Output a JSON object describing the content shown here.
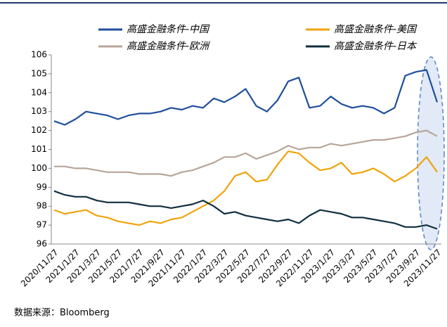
{
  "chart_data": {
    "type": "line",
    "categories": [
      "2020/11/27",
      null,
      "2021/1/27",
      null,
      "2021/3/27",
      null,
      "2021/5/27",
      null,
      "2021/7/27",
      null,
      "2021/9/27",
      null,
      "2021/11/27",
      null,
      "2022/1/27",
      null,
      "2022/3/27",
      null,
      "2022/5/27",
      null,
      "2022/7/27",
      null,
      "2022/9/27",
      null,
      "2022/11/27",
      null,
      "2023/1/27",
      null,
      "2023/3/27",
      null,
      "2023/5/27",
      null,
      "2023/7/27",
      null,
      "2023/9/27",
      null,
      "2023/11/27"
    ],
    "series": [
      {
        "name": "高盛金融条件-中国",
        "color": "#1f4e9c",
        "values": [
          102.5,
          102.3,
          102.6,
          103.0,
          102.9,
          102.8,
          102.6,
          102.8,
          102.9,
          102.9,
          103.0,
          103.2,
          103.1,
          103.3,
          103.2,
          103.7,
          103.5,
          103.8,
          104.2,
          103.3,
          103.0,
          103.6,
          104.6,
          104.8,
          103.2,
          103.3,
          103.8,
          103.4,
          103.2,
          103.3,
          103.2,
          102.9,
          103.2,
          104.9,
          105.1,
          105.2,
          103.5
        ]
      },
      {
        "name": "高盛金融条件-美国",
        "color": "#f0a30a",
        "values": [
          97.8,
          97.6,
          97.7,
          97.8,
          97.5,
          97.4,
          97.2,
          97.1,
          97.0,
          97.2,
          97.1,
          97.3,
          97.4,
          97.7,
          98.0,
          98.3,
          98.8,
          99.6,
          99.8,
          99.3,
          99.4,
          100.2,
          100.9,
          100.8,
          100.3,
          99.9,
          100.0,
          100.3,
          99.7,
          99.8,
          100.0,
          99.7,
          99.3,
          99.6,
          100.0,
          100.6,
          99.8
        ]
      },
      {
        "name": "高盛金融条件-欧洲",
        "color": "#b8a59a",
        "values": [
          100.1,
          100.1,
          100.0,
          100.0,
          99.9,
          99.8,
          99.8,
          99.8,
          99.7,
          99.7,
          99.7,
          99.6,
          99.8,
          99.9,
          100.1,
          100.3,
          100.6,
          100.6,
          100.8,
          100.5,
          100.7,
          100.9,
          101.2,
          101.0,
          101.1,
          101.1,
          101.3,
          101.2,
          101.3,
          101.4,
          101.5,
          101.5,
          101.6,
          101.7,
          101.9,
          102.0,
          101.7
        ]
      },
      {
        "name": "高盛金融条件-日本",
        "color": "#0f2e3f",
        "values": [
          98.8,
          98.6,
          98.5,
          98.5,
          98.3,
          98.2,
          98.2,
          98.2,
          98.1,
          98.0,
          98.0,
          97.9,
          98.0,
          98.1,
          98.3,
          98.0,
          97.6,
          97.7,
          97.5,
          97.4,
          97.3,
          97.2,
          97.3,
          97.1,
          97.5,
          97.8,
          97.7,
          97.6,
          97.4,
          97.4,
          97.3,
          97.2,
          97.1,
          96.9,
          96.9,
          97.0,
          96.8
        ]
      }
    ],
    "ylim": [
      96,
      106
    ],
    "yticks": [
      96,
      97,
      98,
      99,
      100,
      101,
      102,
      103,
      104,
      105,
      106
    ],
    "grid": false,
    "source": "数据来源：Bloomberg"
  }
}
